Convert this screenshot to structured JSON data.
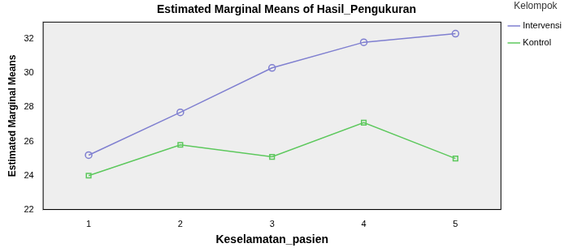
{
  "chart_data": {
    "type": "line",
    "title": "Estimated Marginal Means of Hasil_Pengukuran",
    "x_label": "Keselamatan_pasien",
    "y_label": "Estimated Marginal Means",
    "legend_title": "Kelompok",
    "categories": [
      "1",
      "2",
      "3",
      "4",
      "5"
    ],
    "series": [
      {
        "name": "Intervensi",
        "color": "#7f7fd0",
        "marker": "circle",
        "values": [
          25.2,
          27.7,
          30.3,
          31.8,
          32.3
        ]
      },
      {
        "name": "Kontrol",
        "color": "#5cc85c",
        "marker": "square",
        "values": [
          24.0,
          25.8,
          25.1,
          27.1,
          25.0
        ]
      }
    ],
    "ylim": [
      22,
      33
    ],
    "yticks": [
      22,
      24,
      26,
      28,
      30,
      32
    ],
    "grid": false,
    "legend": "top-right"
  }
}
